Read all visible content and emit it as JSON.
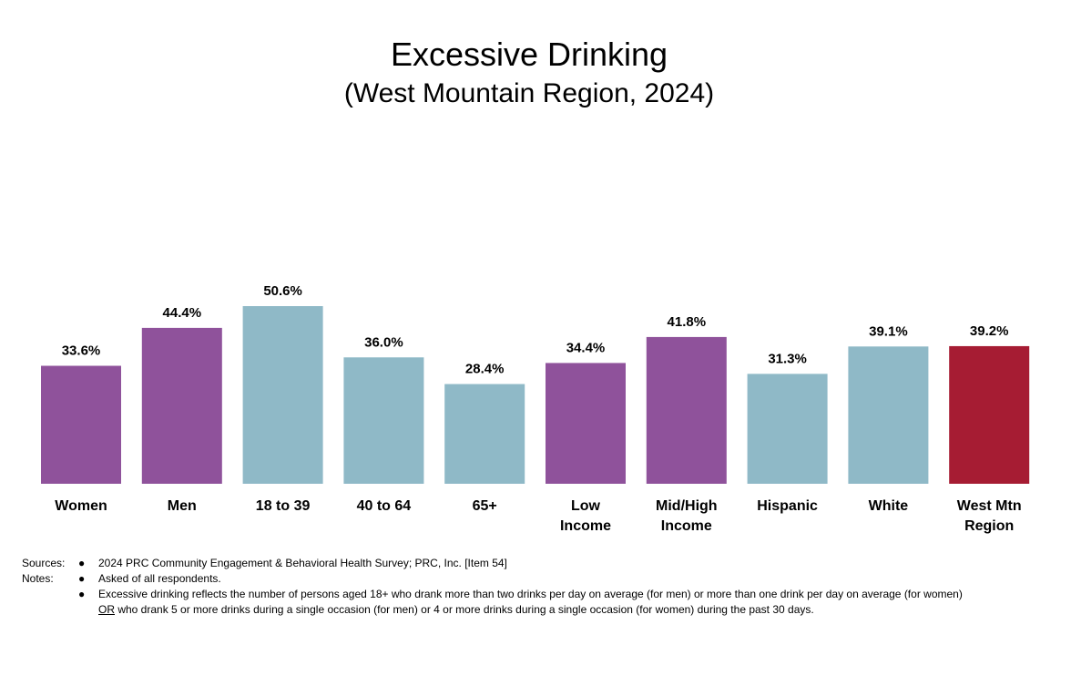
{
  "chart_data": {
    "type": "bar",
    "title": "Excessive Drinking",
    "subtitle": "(West Mountain Region, 2024)",
    "categories": [
      [
        "Women"
      ],
      [
        "Men"
      ],
      [
        "18 to 39"
      ],
      [
        "40 to 64"
      ],
      [
        "65+"
      ],
      [
        "Low",
        "Income"
      ],
      [
        "Mid/High",
        "Income"
      ],
      [
        "Hispanic"
      ],
      [
        "White"
      ],
      [
        "West Mtn",
        "Region"
      ]
    ],
    "values": [
      33.6,
      44.4,
      50.6,
      36.0,
      28.4,
      34.4,
      41.8,
      31.3,
      39.1,
      39.2
    ],
    "value_labels": [
      "33.6%",
      "44.4%",
      "50.6%",
      "36.0%",
      "28.4%",
      "34.4%",
      "41.8%",
      "31.3%",
      "39.1%",
      "39.2%"
    ],
    "colors": [
      "#8f529b",
      "#8f529b",
      "#8fb9c7",
      "#8fb9c7",
      "#8fb9c7",
      "#8f529b",
      "#8f529b",
      "#8fb9c7",
      "#8fb9c7",
      "#a61c33"
    ],
    "grid": false,
    "legend": "none"
  },
  "footer": {
    "sources_label": "Sources:",
    "source_1": "2024 PRC Community Engagement & Behavioral Health Survey; PRC, Inc. [Item 54]",
    "notes_label": "Notes:",
    "note_1": "Asked of all respondents.",
    "note_2_line1": "Excessive drinking reflects the number of persons aged 18+ who drank more than two drinks per day on average (for men) or more than one drink per day on average (for women)",
    "note_2_or": "OR",
    "note_2_line2": " who drank 5 or more drinks during a single occasion (for men) or 4 or more drinks during a single occasion (for women) during the past 30 days.",
    "bullet": "●"
  }
}
